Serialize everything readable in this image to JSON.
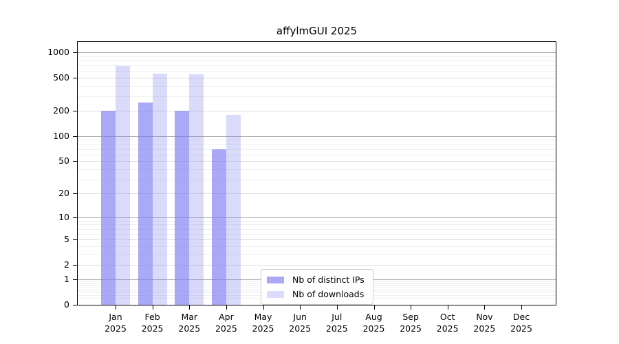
{
  "chart_data": {
    "type": "bar",
    "title": "affylmGUI 2025",
    "scale": "log1p",
    "background": "#ffffff",
    "grid": true,
    "categories": [
      "Jan",
      "Feb",
      "Mar",
      "Apr",
      "May",
      "Jun",
      "Jul",
      "Aug",
      "Sep",
      "Oct",
      "Nov",
      "Dec"
    ],
    "year": "2025",
    "series": [
      {
        "name": "Nb of distinct IPs",
        "color": "#7878f0",
        "alpha": 0.64,
        "swatch": "#a9a9f6",
        "values": [
          200,
          250,
          200,
          70,
          null,
          null,
          null,
          null,
          null,
          null,
          null,
          null
        ]
      },
      {
        "name": "Nb of downloads",
        "color": "#7878f0",
        "alpha": 0.27,
        "swatch": "#dcdcfa",
        "values": [
          690,
          560,
          545,
          180,
          null,
          null,
          null,
          null,
          null,
          null,
          null,
          null
        ]
      }
    ],
    "y_ticks": [
      1000,
      500,
      200,
      100,
      50,
      20,
      10,
      5,
      2,
      1,
      0
    ],
    "y_minor_ticks": [
      0.2,
      0.3,
      0.4,
      0.5,
      0.6,
      0.7,
      0.8,
      0.9,
      3,
      4,
      6,
      7,
      8,
      9,
      30,
      40,
      60,
      70,
      80,
      90,
      300,
      400,
      600,
      700,
      800,
      900
    ],
    "y_decade_ticks": [
      1,
      10,
      100,
      1000
    ],
    "ylim": [
      0,
      1325
    ],
    "xlabel": "",
    "ylabel": "",
    "legend_position": "lower center"
  }
}
